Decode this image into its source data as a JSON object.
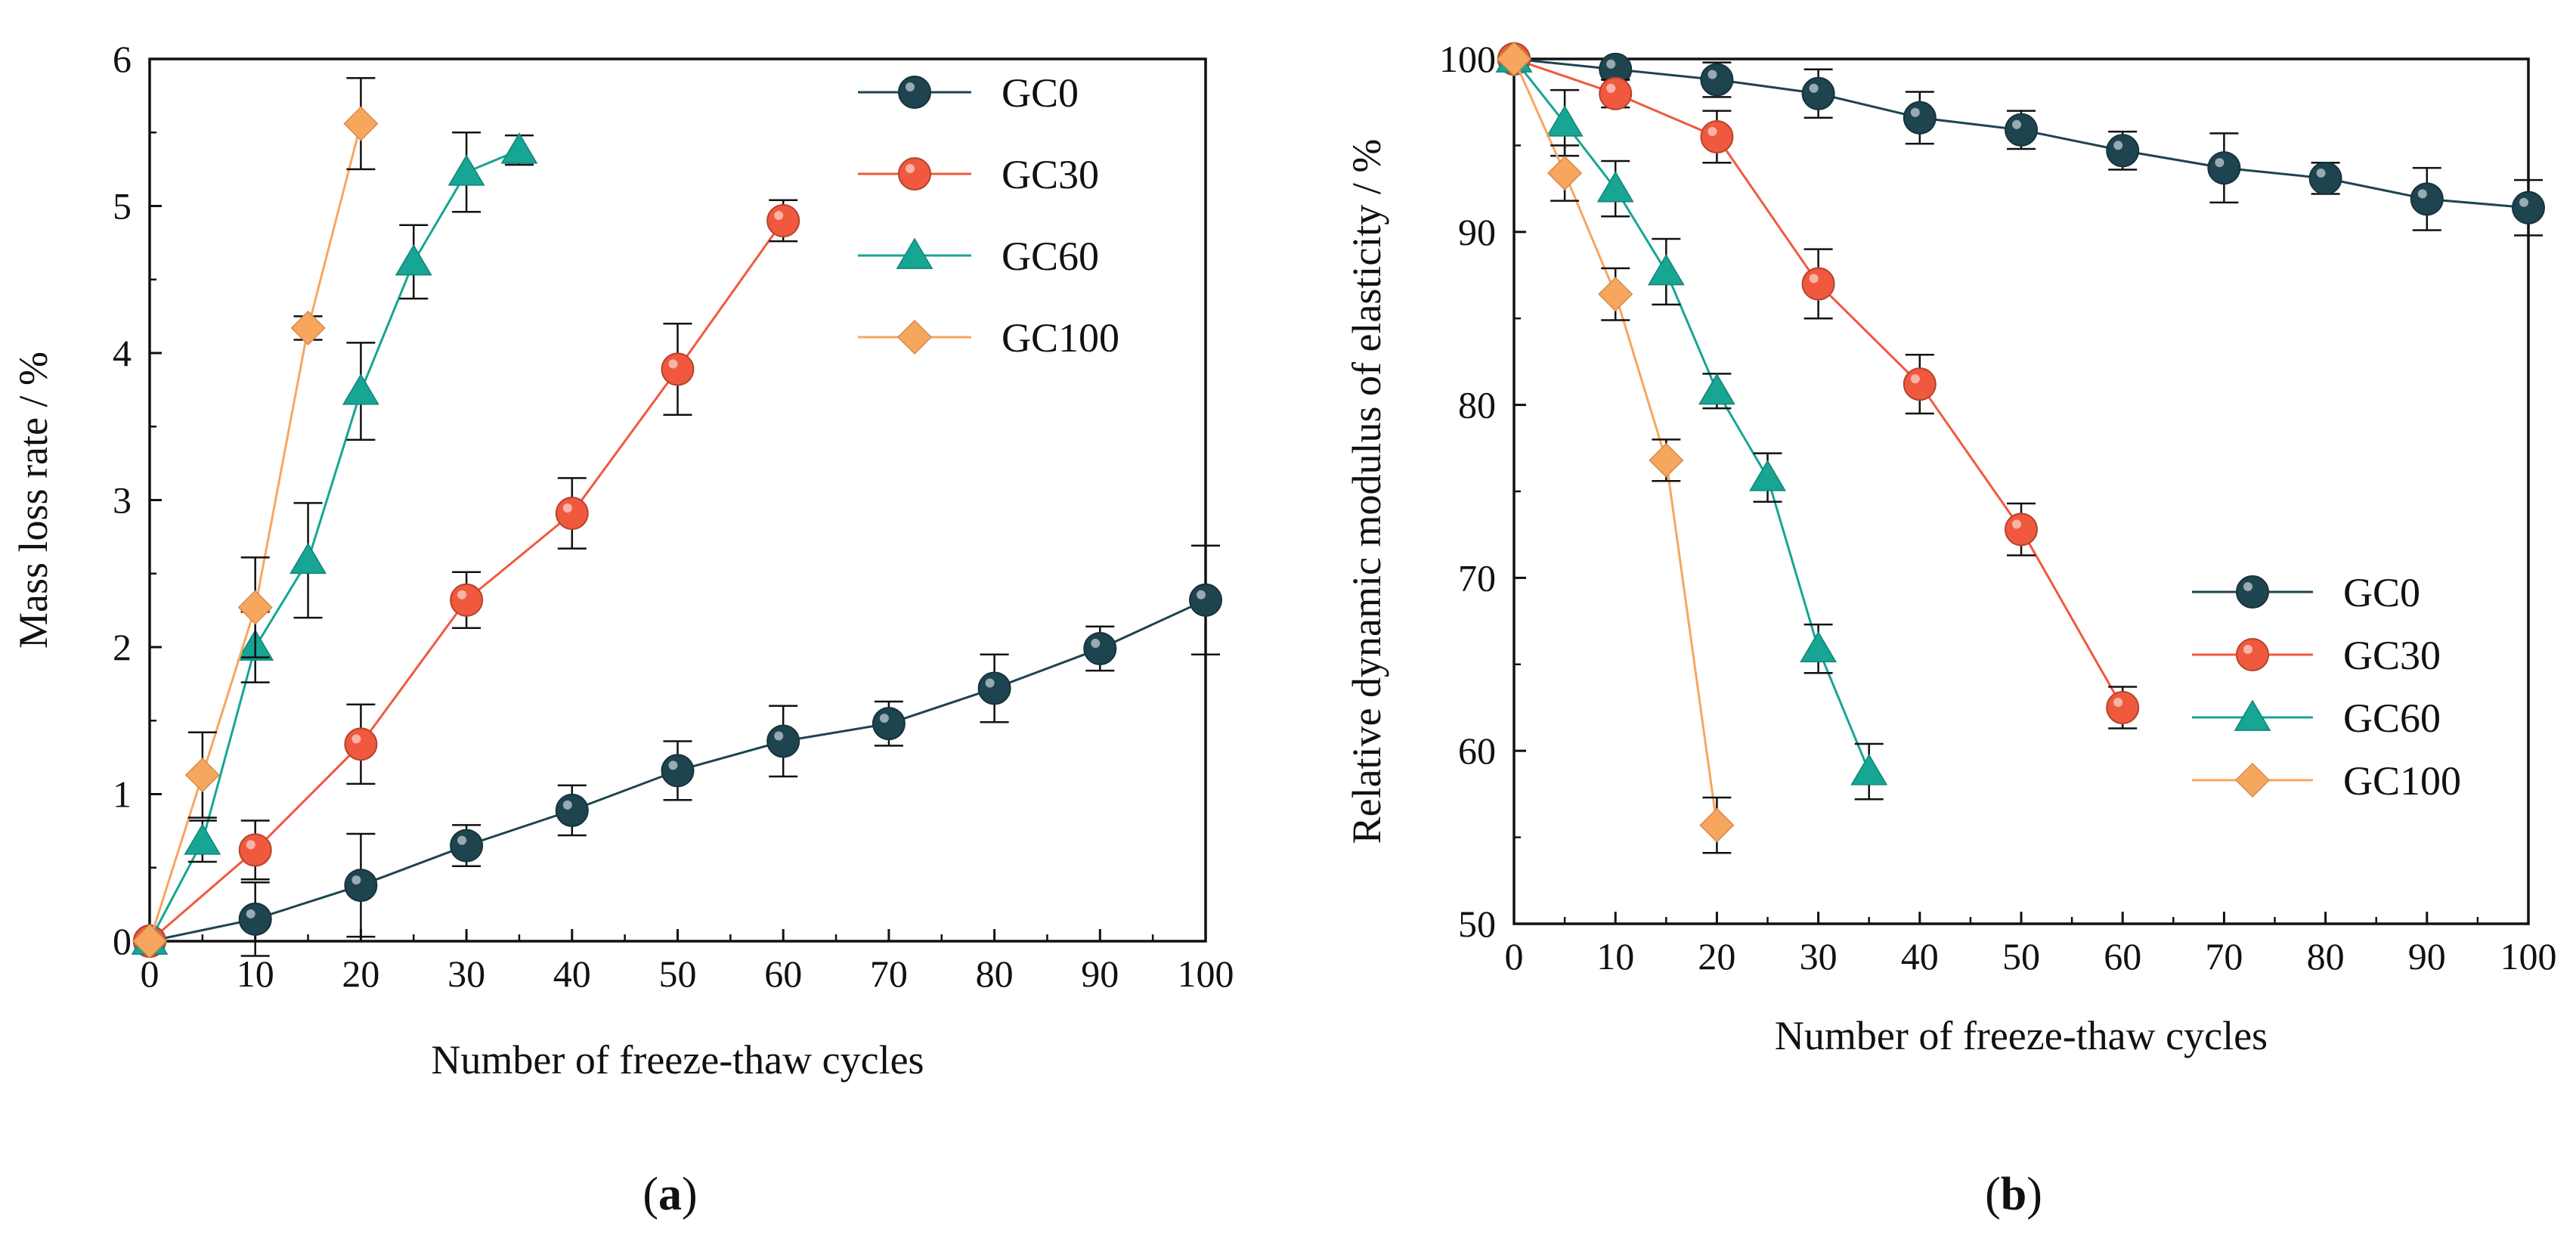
{
  "figure": {
    "panels": [
      "(a)",
      "(b)"
    ]
  },
  "colors": {
    "GC0": "#1e4450",
    "GC30": "#f0593e",
    "GC60": "#17a594",
    "GC100": "#f7a65e",
    "axis": "#111111"
  },
  "chart_data": [
    {
      "type": "line",
      "panel_label_parts": [
        "(",
        "a",
        ")"
      ],
      "title": "",
      "xlabel": "Number of freeze-thaw cycles",
      "ylabel": "Mass loss rate / %",
      "xlim": [
        0,
        100
      ],
      "ylim": [
        0,
        6
      ],
      "xticks": [
        0,
        10,
        20,
        30,
        40,
        50,
        60,
        70,
        80,
        90,
        100
      ],
      "yticks": [
        0,
        1,
        2,
        3,
        4,
        5,
        6
      ],
      "legend_position": "top-right",
      "series": [
        {
          "name": "GC0",
          "marker": "circle",
          "x": [
            0,
            10,
            20,
            30,
            40,
            50,
            60,
            70,
            80,
            90,
            100
          ],
          "y": [
            0,
            0.15,
            0.38,
            0.65,
            0.89,
            1.16,
            1.36,
            1.48,
            1.72,
            1.99,
            2.32
          ],
          "err": [
            0,
            0.25,
            0.35,
            0.14,
            0.17,
            0.2,
            0.24,
            0.15,
            0.23,
            0.15,
            0.37
          ]
        },
        {
          "name": "GC30",
          "marker": "circle",
          "x": [
            0,
            10,
            20,
            30,
            40,
            50,
            60
          ],
          "y": [
            0,
            0.62,
            1.34,
            2.32,
            2.91,
            3.89,
            4.9
          ],
          "err": [
            0,
            0.2,
            0.27,
            0.19,
            0.24,
            0.31,
            0.14
          ]
        },
        {
          "name": "GC60",
          "marker": "triangle",
          "x": [
            0,
            5,
            10,
            15,
            20,
            25,
            30,
            35
          ],
          "y": [
            0,
            0.68,
            2.0,
            2.59,
            3.74,
            4.62,
            5.23,
            5.38
          ],
          "err": [
            0,
            0.14,
            0.24,
            0.39,
            0.33,
            0.25,
            0.27,
            0.1
          ]
        },
        {
          "name": "GC100",
          "marker": "diamond",
          "x": [
            0,
            5,
            10,
            15,
            20
          ],
          "y": [
            0,
            1.13,
            2.27,
            4.17,
            5.56
          ],
          "err": [
            0,
            0.29,
            0.34,
            0.08,
            0.31
          ]
        }
      ]
    },
    {
      "type": "line",
      "panel_label_parts": [
        "(",
        "b",
        ")"
      ],
      "title": "",
      "xlabel": "Number of freeze-thaw cycles",
      "ylabel": "Relative dynamic modulus of elasticity / %",
      "xlim": [
        0,
        100
      ],
      "ylim": [
        50,
        100
      ],
      "xticks": [
        0,
        10,
        20,
        30,
        40,
        50,
        60,
        70,
        80,
        90,
        100
      ],
      "yticks": [
        50,
        60,
        70,
        80,
        90,
        100
      ],
      "legend_position": "center-right",
      "series": [
        {
          "name": "GC0",
          "marker": "circle",
          "x": [
            0,
            10,
            20,
            30,
            40,
            50,
            60,
            70,
            80,
            90,
            100
          ],
          "y": [
            100,
            99.4,
            98.8,
            98.0,
            96.6,
            95.9,
            94.7,
            93.7,
            93.1,
            91.9,
            91.4
          ],
          "err": [
            0,
            0.6,
            1.0,
            1.4,
            1.5,
            1.1,
            1.1,
            2.0,
            0.9,
            1.8,
            1.6
          ]
        },
        {
          "name": "GC30",
          "marker": "circle",
          "x": [
            0,
            10,
            20,
            30,
            40,
            50,
            60
          ],
          "y": [
            100,
            98.0,
            95.5,
            87.0,
            81.2,
            72.8,
            62.5
          ],
          "err": [
            0,
            0.8,
            1.5,
            2.0,
            1.7,
            1.5,
            1.2
          ]
        },
        {
          "name": "GC60",
          "marker": "triangle",
          "x": [
            0,
            5,
            10,
            15,
            20,
            25,
            30,
            35
          ],
          "y": [
            100,
            96.3,
            92.5,
            87.7,
            80.8,
            75.8,
            65.9,
            58.8
          ],
          "err": [
            0,
            1.9,
            1.6,
            1.9,
            1.0,
            1.4,
            1.4,
            1.6
          ]
        },
        {
          "name": "GC100",
          "marker": "diamond",
          "x": [
            0,
            5,
            10,
            15,
            20
          ],
          "y": [
            100,
            93.4,
            86.4,
            76.8,
            55.7
          ],
          "err": [
            0,
            1.6,
            1.5,
            1.2,
            1.6
          ]
        }
      ]
    }
  ]
}
